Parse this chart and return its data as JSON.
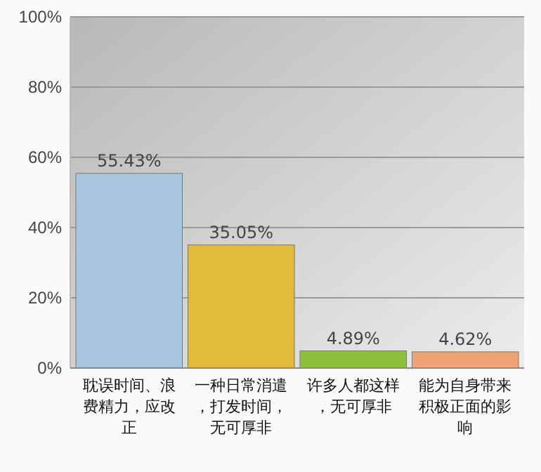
{
  "chart_data": {
    "type": "bar",
    "categories": [
      "耽误时间、浪费精力，应改正",
      "一种日常消遣，打发时间，无可厚非",
      "许多人都这样，无可厚非",
      "能为自身带来积极正面的影响"
    ],
    "values": [
      55.43,
      35.05,
      4.89,
      4.62
    ],
    "colors": [
      "#a9c6e0",
      "#e2bb3c",
      "#8dc03c",
      "#f1a276"
    ],
    "value_labels": [
      "55.43%",
      "35.05%",
      "4.89%",
      "4.62%"
    ],
    "ylim": [
      0,
      100
    ],
    "yticks": [
      {
        "value": 0,
        "label": "0%"
      },
      {
        "value": 20,
        "label": "20%"
      },
      {
        "value": 40,
        "label": "40%"
      },
      {
        "value": 60,
        "label": "60%"
      },
      {
        "value": 80,
        "label": "80%"
      },
      {
        "value": 100,
        "label": "100%"
      }
    ],
    "grid": "y"
  }
}
